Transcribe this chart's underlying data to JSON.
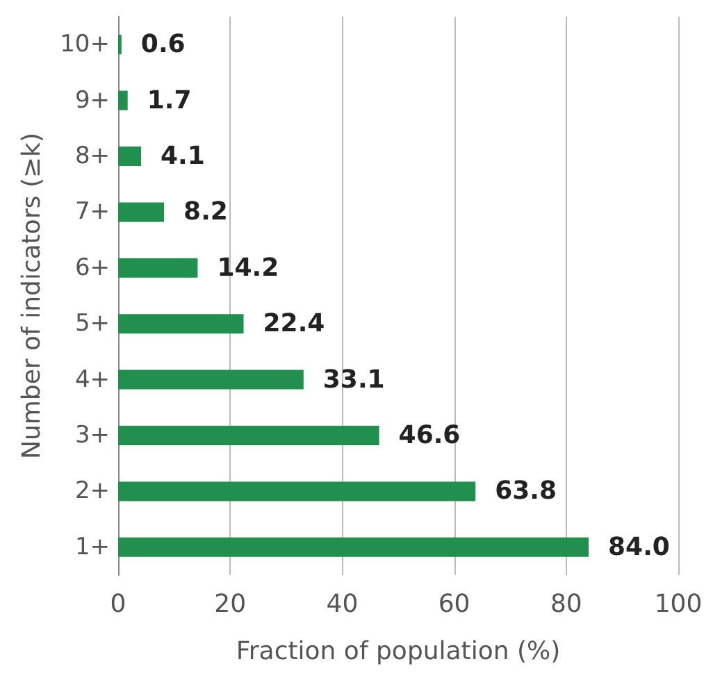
{
  "chart_data": {
    "type": "bar",
    "orientation": "horizontal",
    "xlabel": "Fraction of population (%)",
    "ylabel": "Number of indicators (≥k)",
    "categories": [
      "10+",
      "9+",
      "8+",
      "7+",
      "6+",
      "5+",
      "4+",
      "3+",
      "2+",
      "1+"
    ],
    "values": [
      0.6,
      1.7,
      4.1,
      8.2,
      14.2,
      22.4,
      33.1,
      46.6,
      63.8,
      84.0
    ],
    "value_labels": [
      "0.6",
      "1.7",
      "4.1",
      "8.2",
      "14.2",
      "22.4",
      "33.1",
      "46.6",
      "63.8",
      "84.0"
    ],
    "color": "#21904f",
    "xlim": [
      0,
      100
    ],
    "xticks": [
      0,
      20,
      40,
      60,
      80,
      100
    ],
    "grid": "x"
  }
}
